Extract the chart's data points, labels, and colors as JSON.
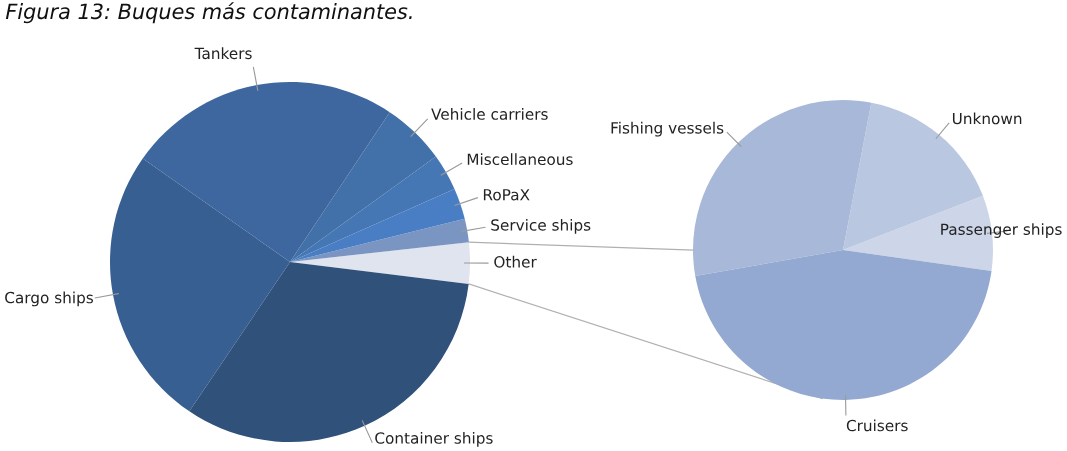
{
  "chart_data": [
    {
      "type": "pie",
      "title": "Figura 13: Buques más contaminantes.",
      "categories": [
        "Other",
        "Service ships",
        "RoPaX",
        "Miscellaneous",
        "Vehicle carriers",
        "Tankers",
        "Cargo ships",
        "Container ships"
      ],
      "values": [
        3.7,
        2.1,
        2.8,
        3.3,
        5.7,
        24.6,
        25.3,
        32.5
      ],
      "colors": [
        "#dfe4ee",
        "#7b95c2",
        "#4a7ec4",
        "#4677b5",
        "#4270a8",
        "#3e679f",
        "#385f92",
        "#30517a"
      ]
    },
    {
      "type": "pie",
      "categories": [
        "Passenger ships",
        "Unknown",
        "Fishing vessels",
        "Cruisers"
      ],
      "values": [
        8.1,
        16.1,
        30.8,
        45.0
      ],
      "colors": [
        "#cdd6e9",
        "#bac7e1",
        "#a8b8d8",
        "#94a9d1"
      ]
    }
  ]
}
